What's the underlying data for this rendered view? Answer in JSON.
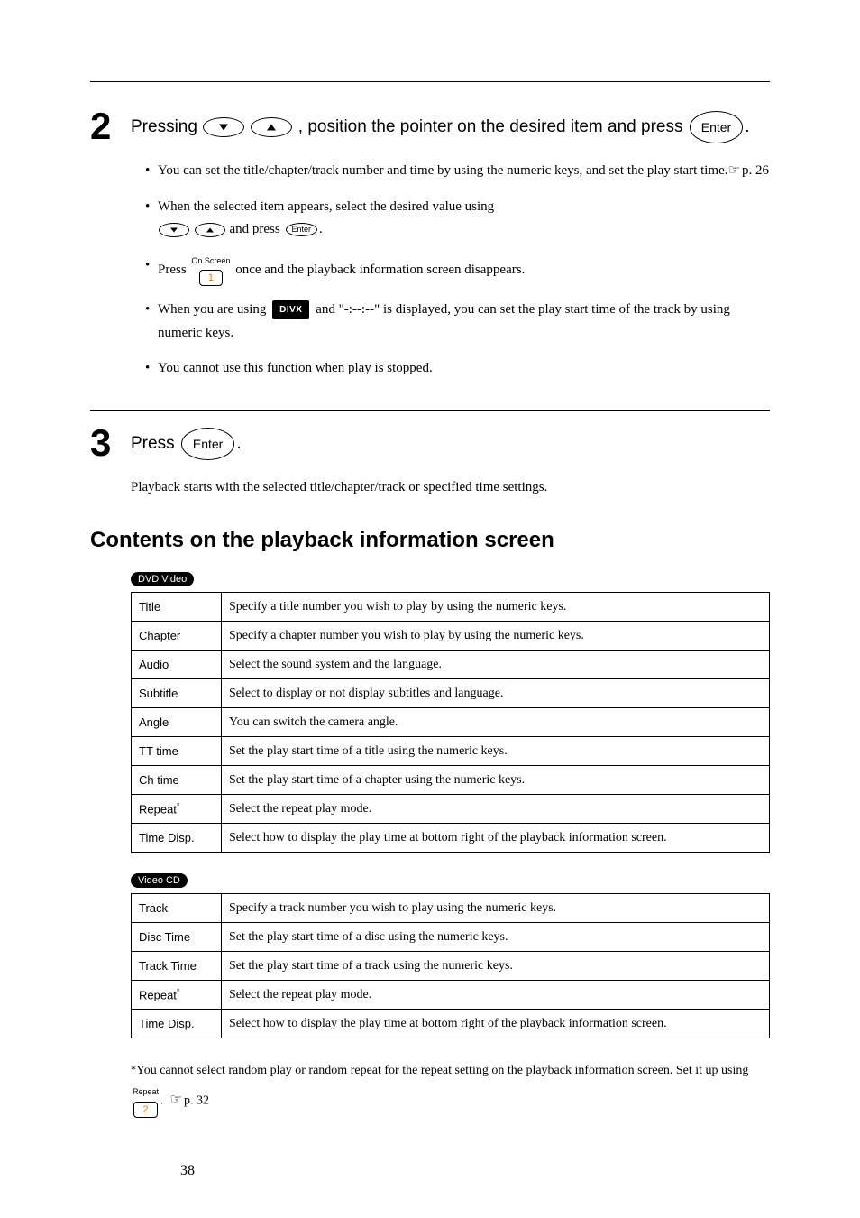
{
  "step2": {
    "instruction_pre": "Pressing ",
    "instruction_mid": ", position the pointer on the desired item and press ",
    "instruction_end": ".",
    "bullets": [
      {
        "pre": "You can set the title/chapter/track number and time by using the numeric keys, and set the play start time.",
        "ref": "p. 26"
      },
      {
        "pre": "When the selected item appears, select the desired value using ",
        "mid": " and press ",
        "end": "."
      },
      {
        "pre": "Press ",
        "mid": " once and the playback information screen disappears."
      },
      {
        "pre": "When you are using ",
        "mid": " and \"-:--:--\" is displayed, you can set the play start time of the track by using numeric keys."
      },
      {
        "pre": "You cannot use this function when play is stopped."
      }
    ]
  },
  "step3": {
    "instruction": "Press ",
    "instruction_end": ".",
    "body": "Playback starts with the selected title/chapter/track or specified time settings."
  },
  "section_title": "Contents on the playback information screen",
  "badges": {
    "dvd": "DVD Video",
    "vcd": "Video CD",
    "divx": "DIVX"
  },
  "buttons": {
    "enter": "Enter",
    "enter_sm": "Enter",
    "onscreen_lbl": "On Screen",
    "onscreen_key": "1",
    "repeat_lbl": "Repeat",
    "repeat_key": "2"
  },
  "dvd_rows": [
    [
      "Title",
      "Specify a title number you wish to play by using the numeric keys."
    ],
    [
      "Chapter",
      "Specify a chapter number you wish to play by using the numeric keys."
    ],
    [
      "Audio",
      "Select the sound system and the language."
    ],
    [
      "Subtitle",
      "Select to display or not display subtitles and language."
    ],
    [
      "Angle",
      "You can switch the camera angle."
    ],
    [
      "TT time",
      "Set the play start time of a title using the numeric keys."
    ],
    [
      "Ch time",
      "Set the play start time of a chapter using the numeric keys."
    ],
    [
      "Repeat*",
      "Select the repeat play mode."
    ],
    [
      "Time Disp.",
      "Select how to display the play time at bottom right of the playback information screen."
    ]
  ],
  "vcd_rows": [
    [
      "Track",
      "Specify a track number you wish to play using the numeric keys."
    ],
    [
      "Disc Time",
      "Set the play start time of a disc using the numeric keys."
    ],
    [
      "Track Time",
      "Set the play start time of a track using the numeric keys."
    ],
    [
      "Repeat*",
      "Select the repeat play mode."
    ],
    [
      "Time Disp.",
      "Select how to display the play time at bottom right of the playback information screen."
    ]
  ],
  "footnote": {
    "pre": "You cannot select random play or random repeat for the repeat setting on the playback information screen. Set it up using ",
    "ref": "p. 32"
  },
  "page_number": "38"
}
